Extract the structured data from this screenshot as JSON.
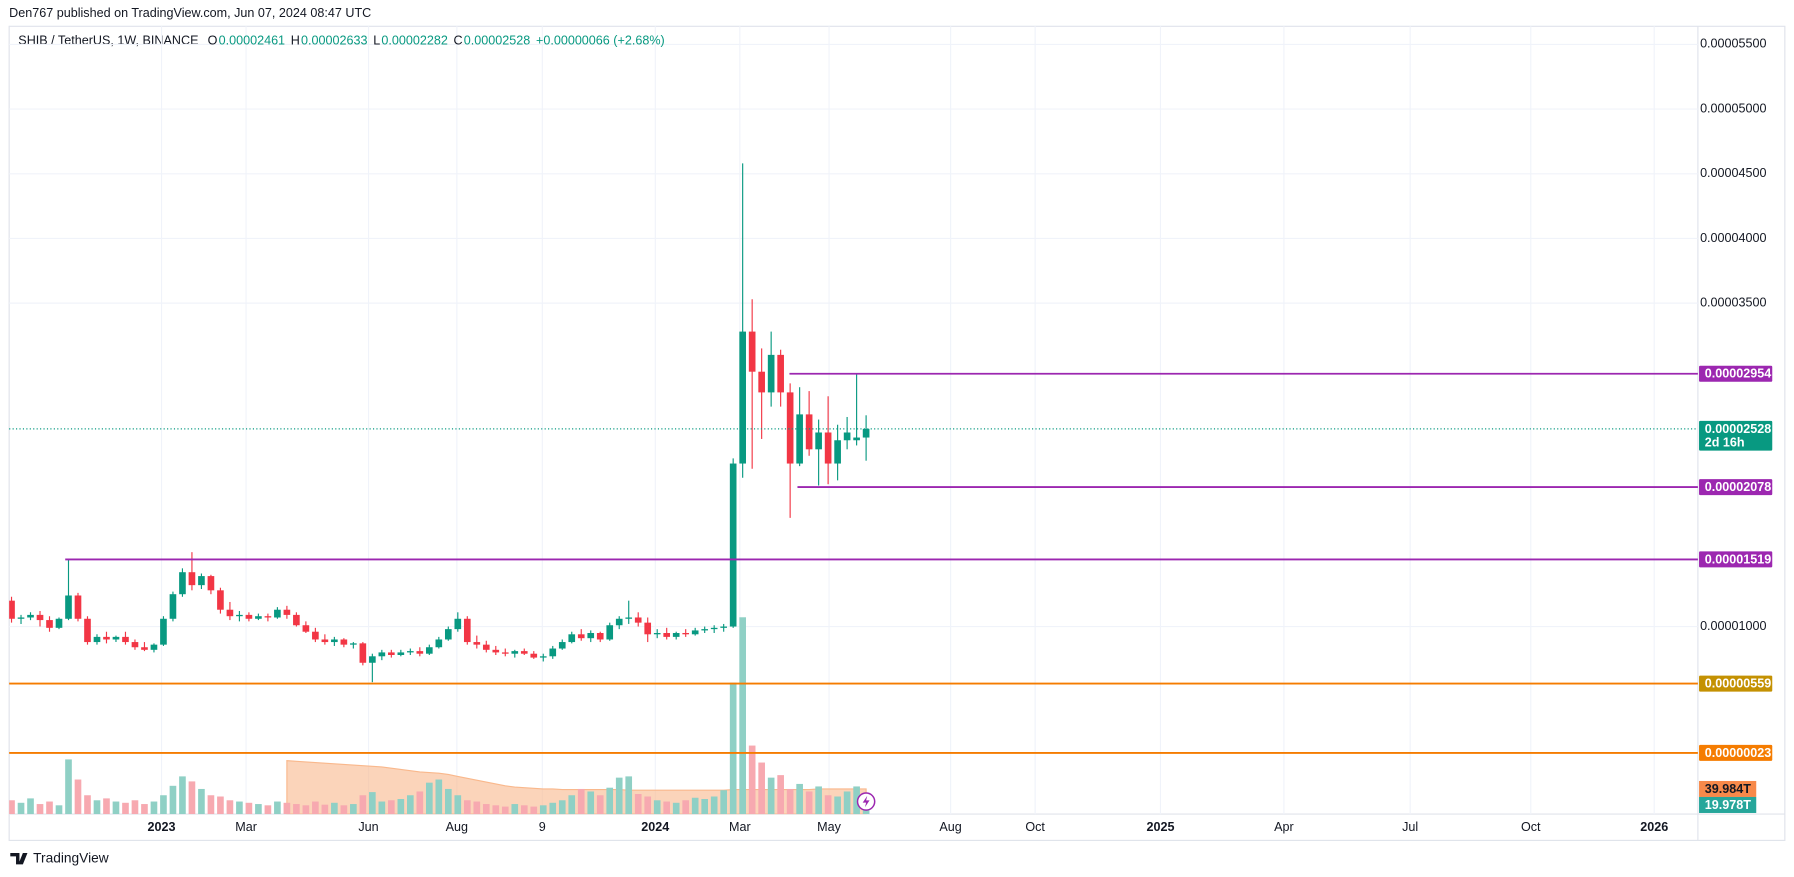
{
  "chart_data": {
    "type": "candlestick",
    "publisher": "Den767 published on TradingView.com, Jun 07, 2024 08:47 UTC",
    "symbol": "SHIB / TetherUS, 1W, BINANCE",
    "ohlc": [
      {
        "key": "O",
        "value": 2.461e-05
      },
      {
        "key": "H",
        "value": 2.633e-05
      },
      {
        "key": "L",
        "value": 2.282e-05
      },
      {
        "key": "C",
        "value": 2.528e-05
      }
    ],
    "change": "+0.00000066 (+2.68%)",
    "brand": "TradingView",
    "up_color": "#089981",
    "down_color": "#f23645",
    "volume_up_color": "#8fd0c5",
    "volume_down_color": "#f7a9b0",
    "volume_ma_color": "#f9b88c",
    "grid": true,
    "ylim": [
      -4.5e-06,
      5.64e-05
    ],
    "yticks": [
      {
        "value": 5.5e-05,
        "label": "0.00005500"
      },
      {
        "value": 5e-05,
        "label": "0.00005000"
      },
      {
        "value": 4.5e-05,
        "label": "0.00004500"
      },
      {
        "value": 4e-05,
        "label": "0.00004000"
      },
      {
        "value": 3.5e-05,
        "label": "0.00003500"
      },
      {
        "value": 1e-05,
        "label": "0.00001000"
      }
    ],
    "xlim": [
      -0.25,
      177.6
    ],
    "xticks": [
      {
        "value": 15.8,
        "label": "2023"
      },
      {
        "value": 24.7,
        "label": "Mar"
      },
      {
        "value": 37.6,
        "label": "Jun"
      },
      {
        "value": 46.9,
        "label": "Aug"
      },
      {
        "value": 55.9,
        "label": "9"
      },
      {
        "value": 67.8,
        "label": "2024"
      },
      {
        "value": 76.7,
        "label": "Mar"
      },
      {
        "value": 86.1,
        "label": "May"
      },
      {
        "value": 98.9,
        "label": "Aug"
      },
      {
        "value": 107.8,
        "label": "Oct"
      },
      {
        "value": 121,
        "label": "2025"
      },
      {
        "value": 134,
        "label": "Apr"
      },
      {
        "value": 147.3,
        "label": "Jul"
      },
      {
        "value": 160,
        "label": "Oct"
      },
      {
        "value": 173,
        "label": "2026"
      }
    ],
    "candles": [
      [
        1.2e-05,
        1.23e-05,
        1.03e-05,
        1.06e-05
      ],
      [
        1.06e-05,
        1.09e-05,
        1.02e-05,
        1.07e-05
      ],
      [
        1.07e-05,
        1.11e-05,
        1.05e-05,
        1.09e-05
      ],
      [
        1.09e-05,
        1.12e-05,
        1e-05,
        1.05e-05
      ],
      [
        1.05e-05,
        1.08e-05,
        9.6e-06,
        9.9e-06
      ],
      [
        9.9e-06,
        1.07e-05,
        9.8e-06,
        1.06e-05
      ],
      [
        1.06e-05,
        1.519e-05,
        1.05e-05,
        1.24e-05
      ],
      [
        1.24e-05,
        1.26e-05,
        1.04e-05,
        1.06e-05
      ],
      [
        1.06e-05,
        1.08e-05,
        8.6e-06,
        8.8e-06
      ],
      [
        8.8e-06,
        9.4e-06,
        8.6e-06,
        9.2e-06
      ],
      [
        9.2e-06,
        9.6e-06,
        8.7e-06,
        9e-06
      ],
      [
        9e-06,
        9.3e-06,
        8.8e-06,
        9.2e-06
      ],
      [
        9.2e-06,
        9.6e-06,
        8.6e-06,
        8.8e-06
      ],
      [
        8.8e-06,
        9e-06,
        8.2e-06,
        8.4e-06
      ],
      [
        8.4e-06,
        8.8e-06,
        8.1e-06,
        8.2e-06
      ],
      [
        8.2e-06,
        8.7e-06,
        8e-06,
        8.6e-06
      ],
      [
        8.6e-06,
        1.08e-05,
        8.5e-06,
        1.06e-05
      ],
      [
        1.06e-05,
        1.27e-05,
        1.04e-05,
        1.25e-05
      ],
      [
        1.25e-05,
        1.45e-05,
        1.23e-05,
        1.42e-05
      ],
      [
        1.42e-05,
        1.575e-05,
        1.28e-05,
        1.32e-05
      ],
      [
        1.32e-05,
        1.41e-05,
        1.29e-05,
        1.39e-05
      ],
      [
        1.39e-05,
        1.4e-05,
        1.25e-05,
        1.28e-05
      ],
      [
        1.28e-05,
        1.3e-05,
        1.1e-05,
        1.13e-05
      ],
      [
        1.13e-05,
        1.19e-05,
        1.05e-05,
        1.08e-05
      ],
      [
        1.08e-05,
        1.12e-05,
        1.04e-05,
        1.09e-05
      ],
      [
        1.09e-05,
        1.11e-05,
        1.04e-05,
        1.06e-05
      ],
      [
        1.06e-05,
        1.1e-05,
        1.05e-05,
        1.08e-05
      ],
      [
        1.08e-05,
        1.1e-05,
        1.04e-05,
        1.07e-05
      ],
      [
        1.07e-05,
        1.15e-05,
        1.06e-05,
        1.13e-05
      ],
      [
        1.13e-05,
        1.16e-05,
        1.06e-05,
        1.09e-05
      ],
      [
        1.09e-05,
        1.11e-05,
        1e-05,
        1.01e-05
      ],
      [
        1.01e-05,
        1.04e-05,
        9.5e-06,
        9.6e-06
      ],
      [
        9.6e-06,
        9.9e-06,
        8.8e-06,
        9e-06
      ],
      [
        9e-06,
        9.4e-06,
        8.6e-06,
        8.8e-06
      ],
      [
        8.8e-06,
        9.2e-06,
        8.5e-06,
        9e-06
      ],
      [
        9e-06,
        9.1e-06,
        8.4e-06,
        8.6e-06
      ],
      [
        8.6e-06,
        8.8e-06,
        8.3e-06,
        8.7e-06
      ],
      [
        8.7e-06,
        8.8e-06,
        7e-06,
        7.2e-06
      ],
      [
        7.2e-06,
        7.9e-06,
        5.7e-06,
        7.7e-06
      ],
      [
        7.7e-06,
        8.2e-06,
        7.4e-06,
        8e-06
      ],
      [
        8e-06,
        8.2e-06,
        7.6e-06,
        7.8e-06
      ],
      [
        7.8e-06,
        8.2e-06,
        7.7e-06,
        8e-06
      ],
      [
        8e-06,
        8.3e-06,
        7.8e-06,
        8.1e-06
      ],
      [
        8.1e-06,
        8.4e-06,
        7.7e-06,
        7.9e-06
      ],
      [
        7.9e-06,
        8.6e-06,
        7.8e-06,
        8.4e-06
      ],
      [
        8.4e-06,
        9.2e-06,
        8.3e-06,
        9e-06
      ],
      [
        9e-06,
        1e-05,
        8.9e-06,
        9.8e-06
      ],
      [
        9.8e-06,
        1.11e-05,
        9.6e-06,
        1.06e-05
      ],
      [
        1.06e-05,
        1.08e-05,
        8.6e-06,
        8.8e-06
      ],
      [
        8.8e-06,
        9.3e-06,
        8.3e-06,
        8.6e-06
      ],
      [
        8.6e-06,
        8.9e-06,
        8e-06,
        8.2e-06
      ],
      [
        8.2e-06,
        8.5e-06,
        7.8e-06,
        8e-06
      ],
      [
        8e-06,
        8.3e-06,
        7.7e-06,
        7.9e-06
      ],
      [
        7.9e-06,
        8.2e-06,
        7.6e-06,
        8.1e-06
      ],
      [
        8.1e-06,
        8.3e-06,
        7.8e-06,
        7.9e-06
      ],
      [
        7.9e-06,
        8.1e-06,
        7.5e-06,
        7.6e-06
      ],
      [
        7.6e-06,
        7.9e-06,
        7.3e-06,
        7.7e-06
      ],
      [
        7.7e-06,
        8.5e-06,
        7.5e-06,
        8.3e-06
      ],
      [
        8.3e-06,
        9e-06,
        8.2e-06,
        8.8e-06
      ],
      [
        8.8e-06,
        9.6e-06,
        8.7e-06,
        9.4e-06
      ],
      [
        9.4e-06,
        9.8e-06,
        8.9e-06,
        9.1e-06
      ],
      [
        9.1e-06,
        9.7e-06,
        8.8e-06,
        9.5e-06
      ],
      [
        9.5e-06,
        9.6e-06,
        8.8e-06,
        9e-06
      ],
      [
        9e-06,
        1.03e-05,
        8.9e-06,
        1.01e-05
      ],
      [
        1.01e-05,
        1.08e-05,
        9.8e-06,
        1.06e-05
      ],
      [
        1.06e-05,
        1.2e-05,
        1.02e-05,
        1.07e-05
      ],
      [
        1.07e-05,
        1.11e-05,
        1e-05,
        1.03e-05
      ],
      [
        1.03e-05,
        1.07e-05,
        8.8e-06,
        9.4e-06
      ],
      [
        9.4e-06,
        9.8e-06,
        9.1e-06,
        9.5e-06
      ],
      [
        9.5e-06,
        9.9e-06,
        9e-06,
        9.2e-06
      ],
      [
        9.2e-06,
        9.6e-06,
        9e-06,
        9.5e-06
      ],
      [
        9.5e-06,
        9.8e-06,
        9.2e-06,
        9.4e-06
      ],
      [
        9.4e-06,
        9.9e-06,
        9.3e-06,
        9.7e-06
      ],
      [
        9.7e-06,
        1e-05,
        9.5e-06,
        9.8e-06
      ],
      [
        9.8e-06,
        1.01e-05,
        9.5e-06,
        9.9e-06
      ],
      [
        9.9e-06,
        1.02e-05,
        9.6e-06,
        1e-05
      ],
      [
        1e-05,
        2.3e-05,
        9.9e-06,
        2.26e-05
      ],
      [
        2.26e-05,
        4.58e-05,
        2.15e-05,
        3.28e-05
      ],
      [
        3.28e-05,
        3.53e-05,
        2.22e-05,
        2.97e-05
      ],
      [
        2.97e-05,
        3.15e-05,
        2.45e-05,
        2.81e-05
      ],
      [
        2.81e-05,
        3.28e-05,
        2.7e-05,
        3.1e-05
      ],
      [
        3.1e-05,
        3.14e-05,
        2.7e-05,
        2.81e-05
      ],
      [
        2.81e-05,
        2.88e-05,
        1.84e-05,
        2.26e-05
      ],
      [
        2.26e-05,
        2.85e-05,
        2.24e-05,
        2.64e-05
      ],
      [
        2.64e-05,
        2.82e-05,
        2.32e-05,
        2.37e-05
      ],
      [
        2.37e-05,
        2.6e-05,
        2.09e-05,
        2.5e-05
      ],
      [
        2.5e-05,
        2.78e-05,
        2.1e-05,
        2.26e-05
      ],
      [
        2.26e-05,
        2.56e-05,
        2.13e-05,
        2.44e-05
      ],
      [
        2.44e-05,
        2.62e-05,
        2.37e-05,
        2.5e-05
      ],
      [
        2.44e-05,
        2.954e-05,
        2.4e-05,
        2.461e-05
      ],
      [
        2.461e-05,
        2.633e-05,
        2.282e-05,
        2.528e-05
      ]
    ],
    "volume_ylim": [
      0,
      380
    ],
    "volume": [
      22,
      18,
      25,
      16,
      20,
      14,
      87,
      55,
      30,
      22,
      25,
      20,
      18,
      22,
      16,
      20,
      30,
      45,
      60,
      52,
      40,
      30,
      28,
      22,
      20,
      18,
      16,
      14,
      20,
      18,
      16,
      14,
      20,
      15,
      18,
      14,
      16,
      30,
      35,
      20,
      22,
      24,
      30,
      36,
      50,
      55,
      40,
      30,
      22,
      20,
      16,
      14,
      12,
      16,
      14,
      12,
      14,
      18,
      22,
      30,
      40,
      36,
      30,
      42,
      58,
      60,
      32,
      28,
      22,
      20,
      18,
      22,
      26,
      24,
      28,
      38,
      209,
      313,
      109,
      82,
      58,
      62,
      40,
      48,
      36,
      44,
      30,
      28,
      36,
      44,
      19.978
    ],
    "volume_ma": [
      null,
      null,
      null,
      null,
      null,
      null,
      null,
      null,
      null,
      null,
      null,
      null,
      null,
      null,
      null,
      null,
      null,
      null,
      null,
      null,
      null,
      null,
      null,
      null,
      null,
      null,
      null,
      null,
      null,
      85,
      84,
      83,
      82,
      81,
      80,
      79,
      78,
      77,
      76,
      75,
      73,
      71,
      69,
      67,
      66,
      65,
      63,
      60,
      57,
      54,
      51,
      48,
      45,
      43,
      42,
      41,
      40,
      40,
      39,
      39,
      39,
      39,
      39,
      39,
      39,
      38,
      38,
      38,
      38,
      38,
      38,
      38,
      38,
      38,
      38,
      38,
      39,
      39,
      39,
      39,
      39,
      39,
      39,
      39,
      39,
      40,
      40,
      40,
      40,
      40,
      39.984
    ],
    "volume_ma_label": {
      "value": 39.984,
      "label": "39.984T",
      "color": "#f7894a"
    },
    "volume_label": {
      "value": 19.978,
      "label": "19.978T",
      "color": "#26a69a"
    },
    "last_price": {
      "value": 2.528e-05,
      "label": "0.00002528",
      "countdown": "2d 16h",
      "color": "#089981"
    },
    "hlines": [
      {
        "value": 2.954e-05,
        "label": "0.00002954",
        "color": "#9c27b0",
        "label_color": "#9c27b0"
      },
      {
        "value": 2.078e-05,
        "label": "0.00002078",
        "color": "#9c27b0",
        "label_color": "#9c27b0"
      },
      {
        "value": 1.519e-05,
        "label": "0.00001519",
        "color": "#9c27b0",
        "label_color": "#9c27b0"
      },
      {
        "value": 5.59e-06,
        "label": "0.00000559",
        "color": "#f57c00",
        "label_color": "#c49102"
      },
      {
        "value": 2.3e-07,
        "label": "0.00000023",
        "color": "#f57c00",
        "label_color": "#f57c00"
      }
    ]
  }
}
